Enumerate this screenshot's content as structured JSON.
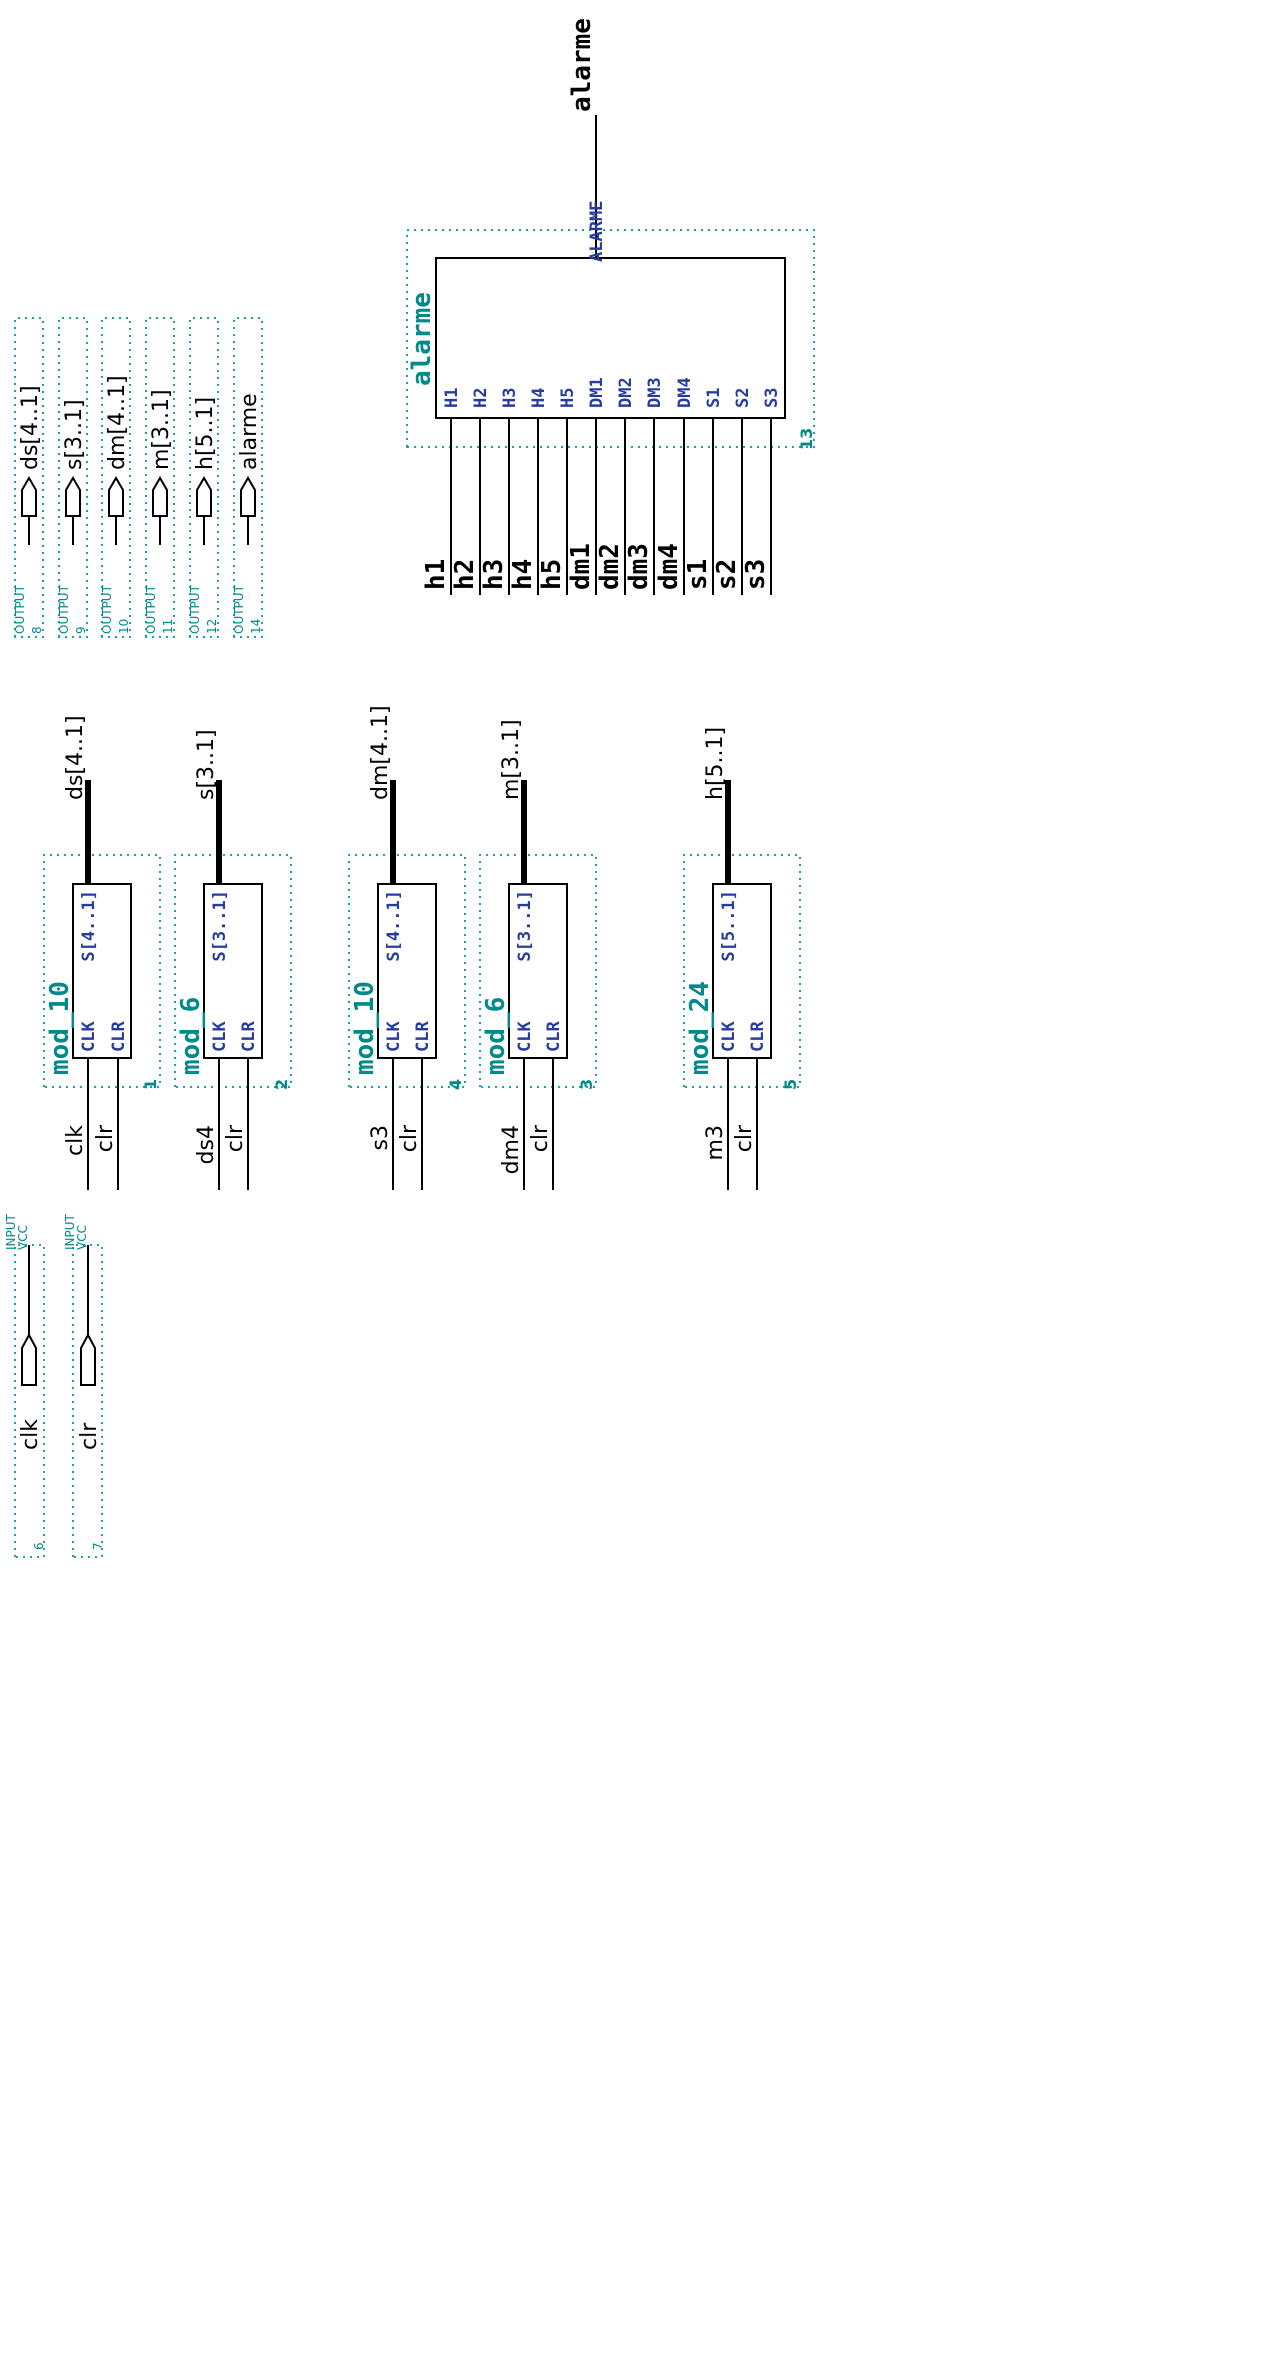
{
  "modules": [
    {
      "name": "mod_10",
      "num": "1",
      "in_pins": [
        "CLK",
        "CLR"
      ],
      "out_pin": "S[4..1]",
      "in_sigs": [
        "clk",
        "clr"
      ],
      "out_sig": "ds[4..1]"
    },
    {
      "name": "mod_6",
      "num": "2",
      "in_pins": [
        "CLK",
        "CLR"
      ],
      "out_pin": "S[3..1]",
      "in_sigs": [
        "ds4",
        "clr"
      ],
      "out_sig": "s[3..1]"
    },
    {
      "name": "mod_10",
      "num": "4",
      "in_pins": [
        "CLK",
        "CLR"
      ],
      "out_pin": "S[4..1]",
      "in_sigs": [
        "s3",
        "clr"
      ],
      "out_sig": "dm[4..1]"
    },
    {
      "name": "mod_6",
      "num": "3",
      "in_pins": [
        "CLK",
        "CLR"
      ],
      "out_pin": "S[3..1]",
      "in_sigs": [
        "dm4",
        "clr"
      ],
      "out_sig": "m[3..1]"
    },
    {
      "name": "mod_24",
      "num": "5",
      "in_pins": [
        "CLK",
        "CLR"
      ],
      "out_pin": "S[5..1]",
      "in_sigs": [
        "m3",
        "clr"
      ],
      "out_sig": "h[5..1]"
    }
  ],
  "alarm": {
    "name": "alarme",
    "num": "13",
    "in_pins": [
      "H1",
      "H2",
      "H3",
      "H4",
      "H5",
      "DM1",
      "DM2",
      "DM3",
      "DM4",
      "S1",
      "S2",
      "S3"
    ],
    "out_pin": "ALARME",
    "in_sigs": [
      "h1",
      "h2",
      "h3",
      "h4",
      "h5",
      "dm1",
      "dm2",
      "dm3",
      "dm4",
      "s1",
      "s2",
      "s3"
    ],
    "out_sig": "alarme"
  },
  "outputs": [
    {
      "type": "OUTPUT",
      "num": "8",
      "name": "ds[4..1]"
    },
    {
      "type": "OUTPUT",
      "num": "9",
      "name": "s[3..1]"
    },
    {
      "type": "OUTPUT",
      "num": "10",
      "name": "dm[4..1]"
    },
    {
      "type": "OUTPUT",
      "num": "11",
      "name": "m[3..1]"
    },
    {
      "type": "OUTPUT",
      "num": "12",
      "name": "h[5..1]"
    },
    {
      "type": "OUTPUT",
      "num": "14",
      "name": "alarme"
    }
  ],
  "inputs": [
    {
      "type": "INPUT",
      "default": "VCC",
      "num": "6",
      "name": "clk"
    },
    {
      "type": "INPUT",
      "default": "VCC",
      "num": "7",
      "name": "clr"
    }
  ]
}
